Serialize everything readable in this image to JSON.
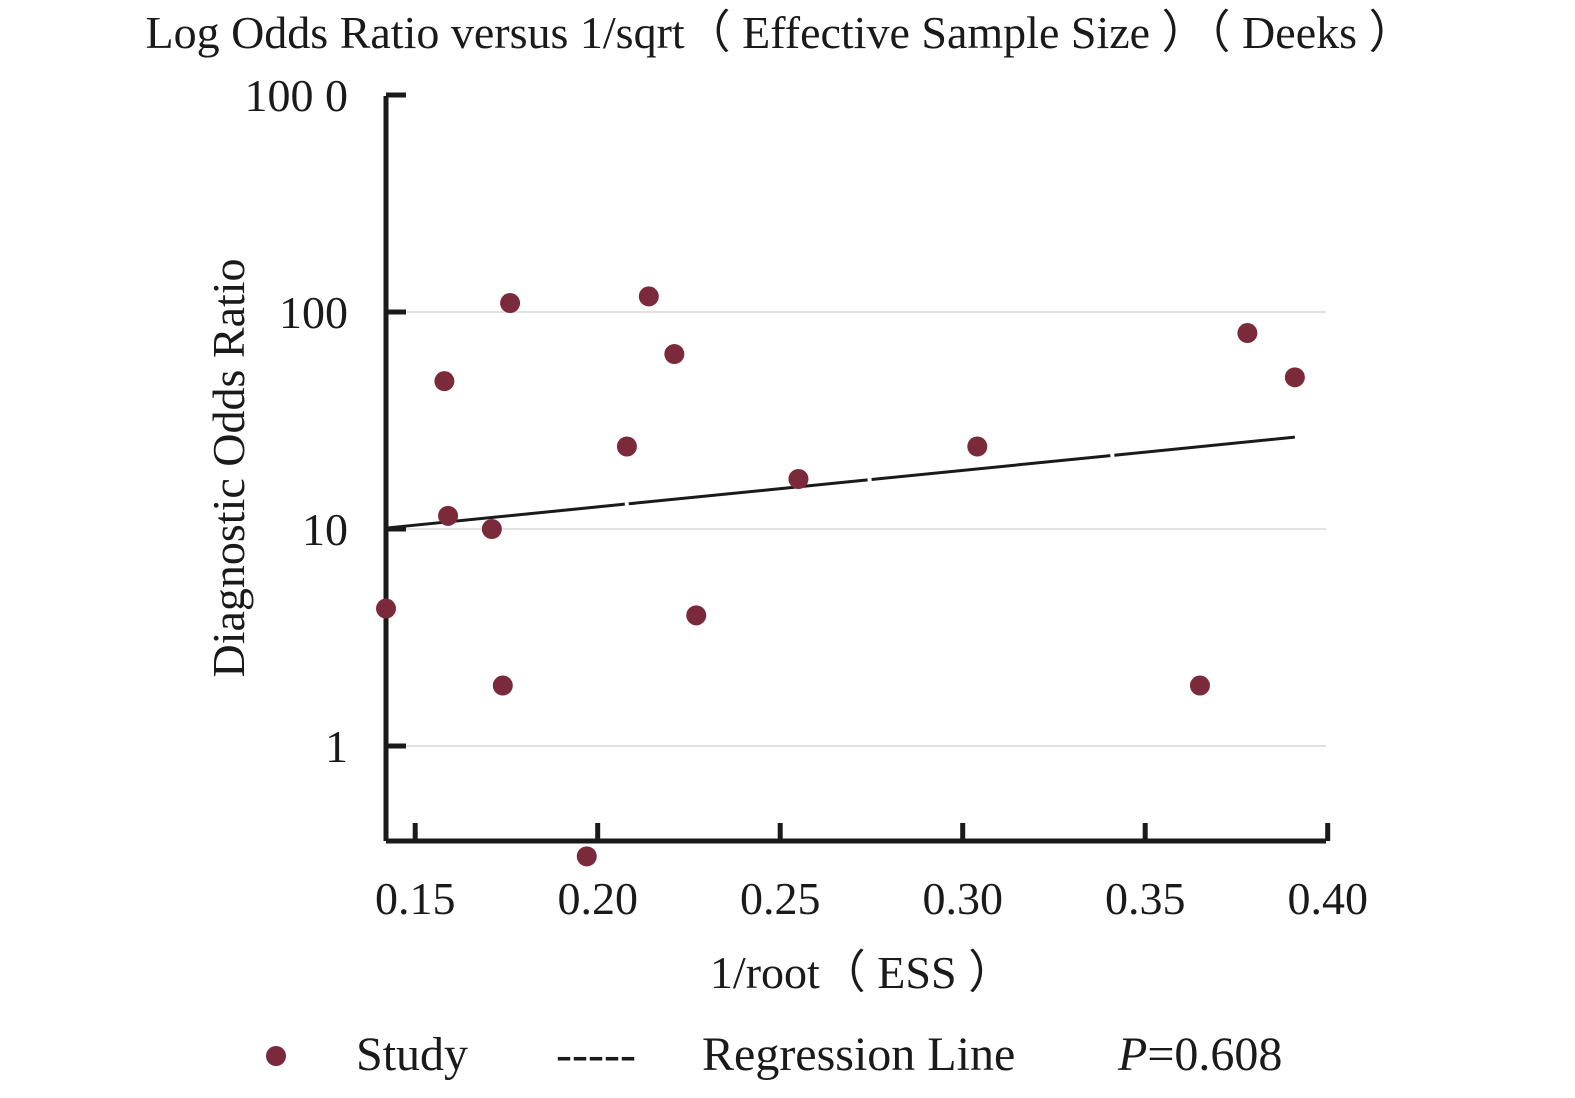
{
  "chart_data": {
    "type": "scatter",
    "title": "Log Odds Ratio versus 1/sqrt（ Effective Sample Size ）（ Deeks ）",
    "xlabel": "1/root（ ESS ）",
    "ylabel": "Diagnostic Odds Ratio",
    "y_scale": "log",
    "xlim": [
      0.142,
      0.4
    ],
    "ylim": [
      0.3,
      1000
    ],
    "x_ticks": [
      {
        "value": 0.15,
        "label": "0.15"
      },
      {
        "value": 0.2,
        "label": "0.20"
      },
      {
        "value": 0.25,
        "label": "0.25"
      },
      {
        "value": 0.3,
        "label": "0.30"
      },
      {
        "value": 0.35,
        "label": "0.35"
      },
      {
        "value": 0.4,
        "label": "0.40"
      }
    ],
    "y_ticks": [
      {
        "value": 1,
        "label": "1"
      },
      {
        "value": 10,
        "label": "10"
      },
      {
        "value": 100,
        "label": "100"
      },
      {
        "value": 1000,
        "label": "100 0"
      }
    ],
    "grid": "horizontal",
    "series": [
      {
        "name": "Study",
        "color": "#7b2a3b",
        "points": [
          {
            "x": 0.142,
            "y": 4.3
          },
          {
            "x": 0.158,
            "y": 48
          },
          {
            "x": 0.159,
            "y": 11.5
          },
          {
            "x": 0.171,
            "y": 10
          },
          {
            "x": 0.174,
            "y": 1.9
          },
          {
            "x": 0.176,
            "y": 110
          },
          {
            "x": 0.197,
            "y": 0.31
          },
          {
            "x": 0.208,
            "y": 24
          },
          {
            "x": 0.214,
            "y": 118
          },
          {
            "x": 0.221,
            "y": 64
          },
          {
            "x": 0.227,
            "y": 4.0
          },
          {
            "x": 0.255,
            "y": 17
          },
          {
            "x": 0.304,
            "y": 24
          },
          {
            "x": 0.365,
            "y": 1.9
          },
          {
            "x": 0.378,
            "y": 80
          },
          {
            "x": 0.391,
            "y": 50
          }
        ]
      },
      {
        "name": "Regression Line",
        "color": "#1a1a1a",
        "line": [
          {
            "x": 0.142,
            "y": 10.1
          },
          {
            "x": 0.391,
            "y": 26.5
          }
        ]
      }
    ],
    "legend": {
      "placement": "bottom",
      "study_label": "Study",
      "regression_symbol": "-----",
      "regression_label": "Regression Line",
      "p_label": "P",
      "p_value": "=0.608"
    }
  }
}
